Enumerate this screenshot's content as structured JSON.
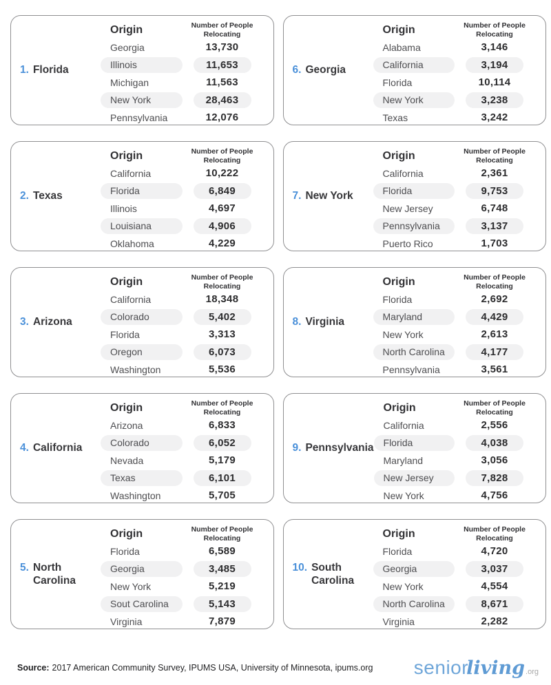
{
  "header_labels": {
    "origin": "Origin",
    "count_line1": "Number of People",
    "count_line2": "Relocating"
  },
  "cards": [
    {
      "rank": "1.",
      "state": "Florida",
      "rows": [
        {
          "origin": "Georgia",
          "value": "13,730"
        },
        {
          "origin": "Illinois",
          "value": "11,653"
        },
        {
          "origin": "Michigan",
          "value": "11,563"
        },
        {
          "origin": "New York",
          "value": "28,463"
        },
        {
          "origin": "Pennsylvania",
          "value": "12,076"
        }
      ]
    },
    {
      "rank": "2.",
      "state": "Texas",
      "rows": [
        {
          "origin": "California",
          "value": "10,222"
        },
        {
          "origin": "Florida",
          "value": "6,849"
        },
        {
          "origin": "Illinois",
          "value": "4,697"
        },
        {
          "origin": "Louisiana",
          "value": "4,906"
        },
        {
          "origin": "Oklahoma",
          "value": "4,229"
        }
      ]
    },
    {
      "rank": "3.",
      "state": "Arizona",
      "rows": [
        {
          "origin": "California",
          "value": "18,348"
        },
        {
          "origin": "Colorado",
          "value": "5,402"
        },
        {
          "origin": "Florida",
          "value": "3,313"
        },
        {
          "origin": "Oregon",
          "value": "6,073"
        },
        {
          "origin": "Washington",
          "value": "5,536"
        }
      ]
    },
    {
      "rank": "4.",
      "state": "California",
      "rows": [
        {
          "origin": "Arizona",
          "value": "6,833"
        },
        {
          "origin": "Colorado",
          "value": "6,052"
        },
        {
          "origin": "Nevada",
          "value": "5,179"
        },
        {
          "origin": "Texas",
          "value": "6,101"
        },
        {
          "origin": "Washington",
          "value": "5,705"
        }
      ]
    },
    {
      "rank": "5.",
      "state": "North Carolina",
      "rows": [
        {
          "origin": "Florida",
          "value": "6,589"
        },
        {
          "origin": "Georgia",
          "value": "3,485"
        },
        {
          "origin": "New York",
          "value": "5,219"
        },
        {
          "origin": "Sout Carolina",
          "value": "5,143"
        },
        {
          "origin": "Virginia",
          "value": "7,879"
        }
      ]
    },
    {
      "rank": "6.",
      "state": "Georgia",
      "rows": [
        {
          "origin": "Alabama",
          "value": "3,146"
        },
        {
          "origin": "California",
          "value": "3,194"
        },
        {
          "origin": "Florida",
          "value": "10,114"
        },
        {
          "origin": "New York",
          "value": "3,238"
        },
        {
          "origin": "Texas",
          "value": "3,242"
        }
      ]
    },
    {
      "rank": "7.",
      "state": "New York",
      "rows": [
        {
          "origin": "California",
          "value": "2,361"
        },
        {
          "origin": "Florida",
          "value": "9,753"
        },
        {
          "origin": "New Jersey",
          "value": "6,748"
        },
        {
          "origin": "Pennsylvania",
          "value": "3,137"
        },
        {
          "origin": "Puerto Rico",
          "value": "1,703"
        }
      ]
    },
    {
      "rank": "8.",
      "state": "Virginia",
      "rows": [
        {
          "origin": "Florida",
          "value": "2,692"
        },
        {
          "origin": "Maryland",
          "value": "4,429"
        },
        {
          "origin": "New York",
          "value": "2,613"
        },
        {
          "origin": "North Carolina",
          "value": "4,177"
        },
        {
          "origin": "Pennsylvania",
          "value": "3,561"
        }
      ]
    },
    {
      "rank": "9.",
      "state": "Pennsylvania",
      "rows": [
        {
          "origin": "California",
          "value": "2,556"
        },
        {
          "origin": "Florida",
          "value": "4,038"
        },
        {
          "origin": "Maryland",
          "value": "3,056"
        },
        {
          "origin": "New Jersey",
          "value": "7,828"
        },
        {
          "origin": "New York",
          "value": "4,756"
        }
      ]
    },
    {
      "rank": "10.",
      "state": "South Carolina",
      "rows": [
        {
          "origin": "Florida",
          "value": "4,720"
        },
        {
          "origin": "Georgia",
          "value": "3,037"
        },
        {
          "origin": "New York",
          "value": "4,554"
        },
        {
          "origin": "North Carolina",
          "value": "8,671"
        },
        {
          "origin": "Virginia",
          "value": "2,282"
        }
      ]
    }
  ],
  "footer": {
    "source_label": "Source:",
    "source_text": "2017 American Community Survey, IPUMS USA, University of Minnesota, ipums.org",
    "logo_part1": "senior",
    "logo_part2": "living",
    "logo_suffix": ".org"
  },
  "colors": {
    "accent_blue": "#4a90d9",
    "logo_blue": "#6fa6d9",
    "pill_gray": "#f1f1f2",
    "card_border": "#8f8f91",
    "text_dark": "#2c2c2e",
    "text_origin": "#4d4d50"
  },
  "chart_data": {
    "type": "table",
    "columns": [
      "Origin",
      "Number of People Relocating"
    ],
    "tables": [
      {
        "rank": 1,
        "destination": "Florida",
        "rows": [
          [
            "Georgia",
            13730
          ],
          [
            "Illinois",
            11653
          ],
          [
            "Michigan",
            11563
          ],
          [
            "New York",
            28463
          ],
          [
            "Pennsylvania",
            12076
          ]
        ]
      },
      {
        "rank": 2,
        "destination": "Texas",
        "rows": [
          [
            "California",
            10222
          ],
          [
            "Florida",
            6849
          ],
          [
            "Illinois",
            4697
          ],
          [
            "Louisiana",
            4906
          ],
          [
            "Oklahoma",
            4229
          ]
        ]
      },
      {
        "rank": 3,
        "destination": "Arizona",
        "rows": [
          [
            "California",
            18348
          ],
          [
            "Colorado",
            5402
          ],
          [
            "Florida",
            3313
          ],
          [
            "Oregon",
            6073
          ],
          [
            "Washington",
            5536
          ]
        ]
      },
      {
        "rank": 4,
        "destination": "California",
        "rows": [
          [
            "Arizona",
            6833
          ],
          [
            "Colorado",
            6052
          ],
          [
            "Nevada",
            5179
          ],
          [
            "Texas",
            6101
          ],
          [
            "Washington",
            5705
          ]
        ]
      },
      {
        "rank": 5,
        "destination": "North Carolina",
        "rows": [
          [
            "Florida",
            6589
          ],
          [
            "Georgia",
            3485
          ],
          [
            "New York",
            5219
          ],
          [
            "Sout Carolina",
            5143
          ],
          [
            "Virginia",
            7879
          ]
        ]
      },
      {
        "rank": 6,
        "destination": "Georgia",
        "rows": [
          [
            "Alabama",
            3146
          ],
          [
            "California",
            3194
          ],
          [
            "Florida",
            10114
          ],
          [
            "New York",
            3238
          ],
          [
            "Texas",
            3242
          ]
        ]
      },
      {
        "rank": 7,
        "destination": "New York",
        "rows": [
          [
            "California",
            2361
          ],
          [
            "Florida",
            9753
          ],
          [
            "New Jersey",
            6748
          ],
          [
            "Pennsylvania",
            3137
          ],
          [
            "Puerto Rico",
            1703
          ]
        ]
      },
      {
        "rank": 8,
        "destination": "Virginia",
        "rows": [
          [
            "Florida",
            2692
          ],
          [
            "Maryland",
            4429
          ],
          [
            "New York",
            2613
          ],
          [
            "North Carolina",
            4177
          ],
          [
            "Pennsylvania",
            3561
          ]
        ]
      },
      {
        "rank": 9,
        "destination": "Pennsylvania",
        "rows": [
          [
            "California",
            2556
          ],
          [
            "Florida",
            4038
          ],
          [
            "Maryland",
            3056
          ],
          [
            "New Jersey",
            7828
          ],
          [
            "New York",
            4756
          ]
        ]
      },
      {
        "rank": 10,
        "destination": "South Carolina",
        "rows": [
          [
            "Florida",
            4720
          ],
          [
            "Georgia",
            3037
          ],
          [
            "New York",
            4554
          ],
          [
            "North Carolina",
            8671
          ],
          [
            "Virginia",
            2282
          ]
        ]
      }
    ]
  }
}
